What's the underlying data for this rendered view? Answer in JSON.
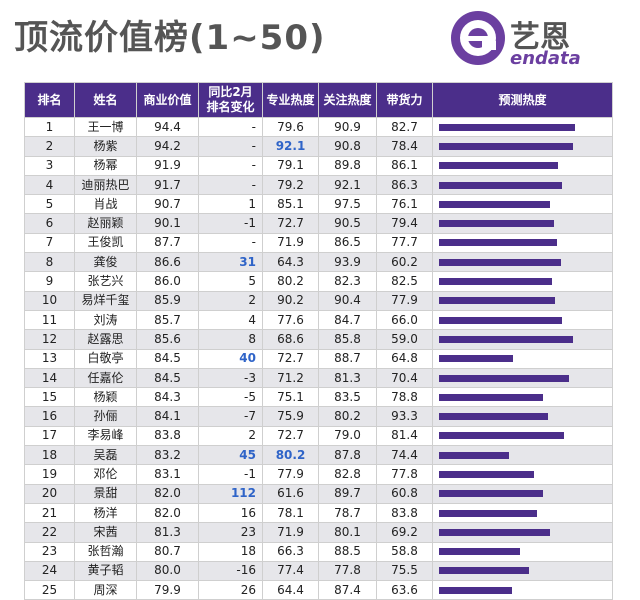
{
  "title": "顶流价值榜(1~50)",
  "logo": {
    "cn": "艺恩",
    "en": "endata",
    "icon": "endata-e-logo-icon"
  },
  "colors": {
    "header_bg": "#4b2e8a",
    "bar": "#4b2e8a",
    "highlight": "#2f64c8"
  },
  "table": {
    "headers": [
      "排名",
      "姓名",
      "商业价值",
      "同比2月\n排名变化",
      "专业热度",
      "关注热度",
      "带货力",
      "预测热度"
    ],
    "rows": [
      {
        "rank": "1",
        "name": "王一博",
        "value": "94.4",
        "change": "-",
        "pro": "79.6",
        "att": "90.9",
        "sales": "82.7",
        "forecast": 0.97
      },
      {
        "rank": "2",
        "name": "杨紫",
        "value": "94.2",
        "change": "-",
        "pro": "92.1",
        "att": "90.8",
        "sales": "78.4",
        "forecast": 0.96,
        "hl_pro": true
      },
      {
        "rank": "3",
        "name": "杨幂",
        "value": "91.9",
        "change": "-",
        "pro": "79.1",
        "att": "89.8",
        "sales": "86.1",
        "forecast": 0.85
      },
      {
        "rank": "4",
        "name": "迪丽热巴",
        "value": "91.7",
        "change": "-",
        "pro": "79.2",
        "att": "92.1",
        "sales": "86.3",
        "forecast": 0.88
      },
      {
        "rank": "5",
        "name": "肖战",
        "value": "90.7",
        "change": "1",
        "pro": "85.1",
        "att": "97.5",
        "sales": "76.1",
        "forecast": 0.79
      },
      {
        "rank": "6",
        "name": "赵丽颖",
        "value": "90.1",
        "change": "-1",
        "pro": "72.7",
        "att": "90.5",
        "sales": "79.4",
        "forecast": 0.82
      },
      {
        "rank": "7",
        "name": "王俊凯",
        "value": "87.7",
        "change": "-",
        "pro": "71.9",
        "att": "86.5",
        "sales": "77.7",
        "forecast": 0.84
      },
      {
        "rank": "8",
        "name": "龚俊",
        "value": "86.6",
        "change": "31",
        "pro": "64.3",
        "att": "93.9",
        "sales": "60.2",
        "forecast": 0.87,
        "hl_change": true
      },
      {
        "rank": "9",
        "name": "张艺兴",
        "value": "86.0",
        "change": "5",
        "pro": "80.2",
        "att": "82.3",
        "sales": "82.5",
        "forecast": 0.81
      },
      {
        "rank": "10",
        "name": "易烊千玺",
        "value": "85.9",
        "change": "2",
        "pro": "90.2",
        "att": "90.4",
        "sales": "77.9",
        "forecast": 0.83
      },
      {
        "rank": "11",
        "name": "刘涛",
        "value": "85.7",
        "change": "4",
        "pro": "77.6",
        "att": "84.7",
        "sales": "66.0",
        "forecast": 0.88
      },
      {
        "rank": "12",
        "name": "赵露思",
        "value": "85.6",
        "change": "8",
        "pro": "68.6",
        "att": "85.8",
        "sales": "59.0",
        "forecast": 0.96
      },
      {
        "rank": "13",
        "name": "白敬亭",
        "value": "84.5",
        "change": "40",
        "pro": "72.7",
        "att": "88.7",
        "sales": "64.8",
        "forecast": 0.53,
        "hl_change": true
      },
      {
        "rank": "14",
        "name": "任嘉伦",
        "value": "84.5",
        "change": "-3",
        "pro": "71.2",
        "att": "81.3",
        "sales": "70.4",
        "forecast": 0.93
      },
      {
        "rank": "15",
        "name": "杨颖",
        "value": "84.3",
        "change": "-5",
        "pro": "75.1",
        "att": "83.5",
        "sales": "78.8",
        "forecast": 0.74
      },
      {
        "rank": "16",
        "name": "孙俪",
        "value": "84.1",
        "change": "-7",
        "pro": "75.9",
        "att": "80.2",
        "sales": "93.3",
        "forecast": 0.78
      },
      {
        "rank": "17",
        "name": "李易峰",
        "value": "83.8",
        "change": "2",
        "pro": "72.7",
        "att": "79.0",
        "sales": "81.4",
        "forecast": 0.89
      },
      {
        "rank": "18",
        "name": "吴磊",
        "value": "83.2",
        "change": "45",
        "pro": "80.2",
        "att": "87.8",
        "sales": "74.4",
        "forecast": 0.5,
        "hl_change": true,
        "hl_pro": true
      },
      {
        "rank": "19",
        "name": "邓伦",
        "value": "83.1",
        "change": "-1",
        "pro": "77.9",
        "att": "82.8",
        "sales": "77.8",
        "forecast": 0.68
      },
      {
        "rank": "20",
        "name": "景甜",
        "value": "82.0",
        "change": "112",
        "pro": "61.6",
        "att": "89.7",
        "sales": "60.8",
        "forecast": 0.74,
        "hl_change": true
      },
      {
        "rank": "21",
        "name": "杨洋",
        "value": "82.0",
        "change": "16",
        "pro": "78.1",
        "att": "78.7",
        "sales": "83.8",
        "forecast": 0.7
      },
      {
        "rank": "22",
        "name": "宋茜",
        "value": "81.3",
        "change": "23",
        "pro": "71.9",
        "att": "80.1",
        "sales": "69.2",
        "forecast": 0.79
      },
      {
        "rank": "23",
        "name": "张哲瀚",
        "value": "80.7",
        "change": "18",
        "pro": "66.3",
        "att": "88.5",
        "sales": "58.8",
        "forecast": 0.58
      },
      {
        "rank": "24",
        "name": "黄子韬",
        "value": "80.0",
        "change": "-16",
        "pro": "77.4",
        "att": "77.8",
        "sales": "75.5",
        "forecast": 0.64
      },
      {
        "rank": "25",
        "name": "周深",
        "value": "79.9",
        "change": "26",
        "pro": "64.4",
        "att": "87.4",
        "sales": "63.6",
        "forecast": 0.52
      }
    ]
  }
}
